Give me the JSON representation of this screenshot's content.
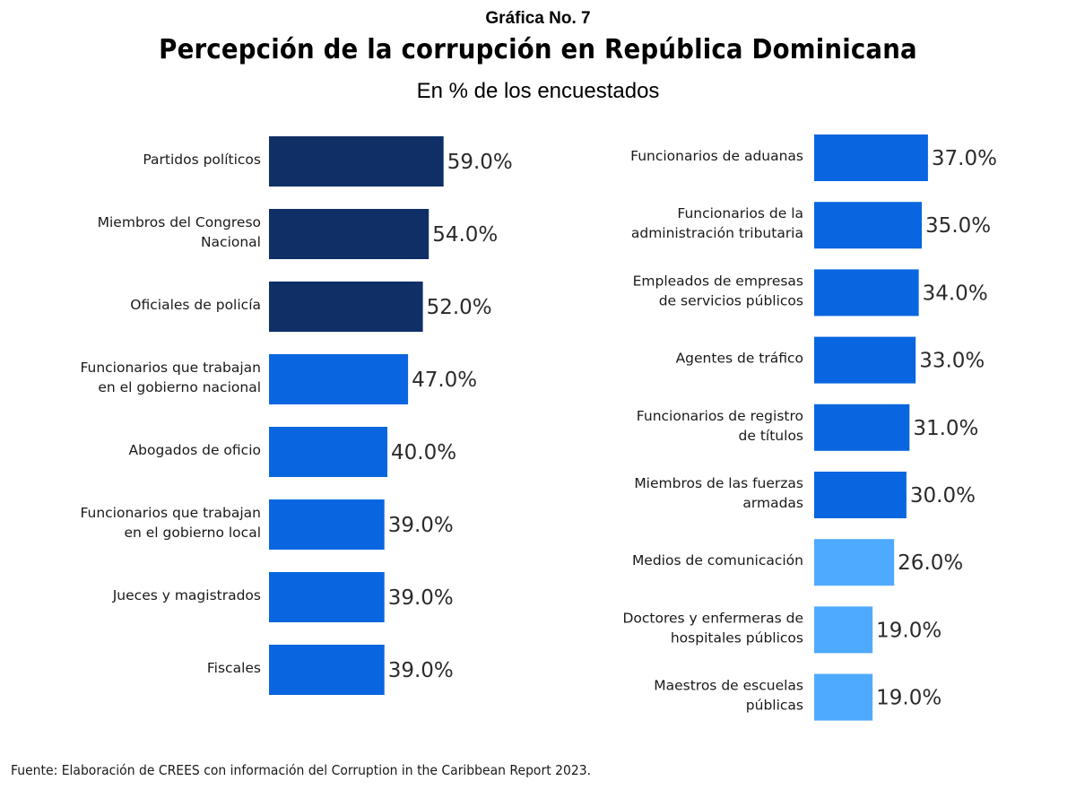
{
  "header": {
    "kicker": "Gráfica No. 7",
    "title": "Percepción de la corrupción en República Dominicana",
    "subtitle": "En % de los encuestados"
  },
  "footer": {
    "source": "Fuente: Elaboración de CREES con información del Corruption in the Caribbean Report 2023."
  },
  "colors": {
    "dark": "#0f2f66",
    "medium": "#0a66e0",
    "light": "#4eaaff"
  },
  "chart_data": [
    {
      "type": "bar",
      "orientation": "horizontal",
      "panel": "left",
      "title": "Percepción de la corrupción en República Dominicana",
      "subtitle": "En % de los encuestados",
      "xlabel": "",
      "ylabel": "",
      "xlim": [
        0,
        60
      ],
      "grid": false,
      "value_format": "0.0%",
      "categories": [
        [
          "Partidos políticos"
        ],
        [
          "Miembros del Congreso",
          "Nacional"
        ],
        [
          "Oficiales de policía"
        ],
        [
          "Funcionarios  que trabajan",
          "en el gobierno nacional"
        ],
        [
          "Abogados de oficio"
        ],
        [
          "Funcionarios que trabajan",
          "en el gobierno local"
        ],
        [
          "Jueces y magistrados"
        ],
        [
          "Fiscales"
        ]
      ],
      "values": [
        59.0,
        54.0,
        52.0,
        47.0,
        40.0,
        39.0,
        39.0,
        39.0
      ],
      "labels": [
        "59.0%",
        "54.0%",
        "52.0%",
        "47.0%",
        "40.0%",
        "39.0%",
        "39.0%",
        "39.0%"
      ],
      "bar_colors": [
        "dark",
        "dark",
        "dark",
        "medium",
        "medium",
        "medium",
        "medium",
        "medium"
      ]
    },
    {
      "type": "bar",
      "orientation": "horizontal",
      "panel": "right",
      "xlabel": "",
      "ylabel": "",
      "xlim": [
        0,
        60
      ],
      "grid": false,
      "value_format": "0.0%",
      "categories": [
        [
          "Funcionarios de aduanas"
        ],
        [
          "Funcionarios de la",
          "administración tributaria"
        ],
        [
          "Empleados de empresas",
          "de servicios públicos"
        ],
        [
          "Agentes de tráfico"
        ],
        [
          "Funcionarios de registro",
          "de títulos"
        ],
        [
          "Miembros de las fuerzas",
          "armadas"
        ],
        [
          "Medios de comunicación"
        ],
        [
          "Doctores y enfermeras de",
          "hospitales públicos"
        ],
        [
          "Maestros de escuelas",
          "públicas"
        ]
      ],
      "values": [
        37.0,
        35.0,
        34.0,
        33.0,
        31.0,
        30.0,
        26.0,
        19.0,
        19.0
      ],
      "labels": [
        "37.0%",
        "35.0%",
        "34.0%",
        "33.0%",
        "31.0%",
        "30.0%",
        "26.0%",
        "19.0%",
        "19.0%"
      ],
      "bar_colors": [
        "medium",
        "medium",
        "medium",
        "medium",
        "medium",
        "medium",
        "light",
        "light",
        "light"
      ]
    }
  ]
}
